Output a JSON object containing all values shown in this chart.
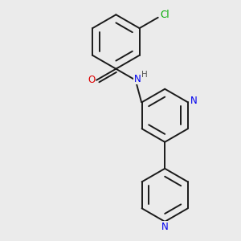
{
  "bg_color": "#ebebeb",
  "bond_color": "#1a1a1a",
  "bond_width": 1.4,
  "atom_colors": {
    "N": "#0000ee",
    "O": "#dd0000",
    "Cl": "#00aa00",
    "H": "#555555"
  },
  "font_size_atom": 8.5,
  "font_size_h": 7.5,
  "figsize": [
    3.0,
    3.0
  ],
  "dpi": 100
}
